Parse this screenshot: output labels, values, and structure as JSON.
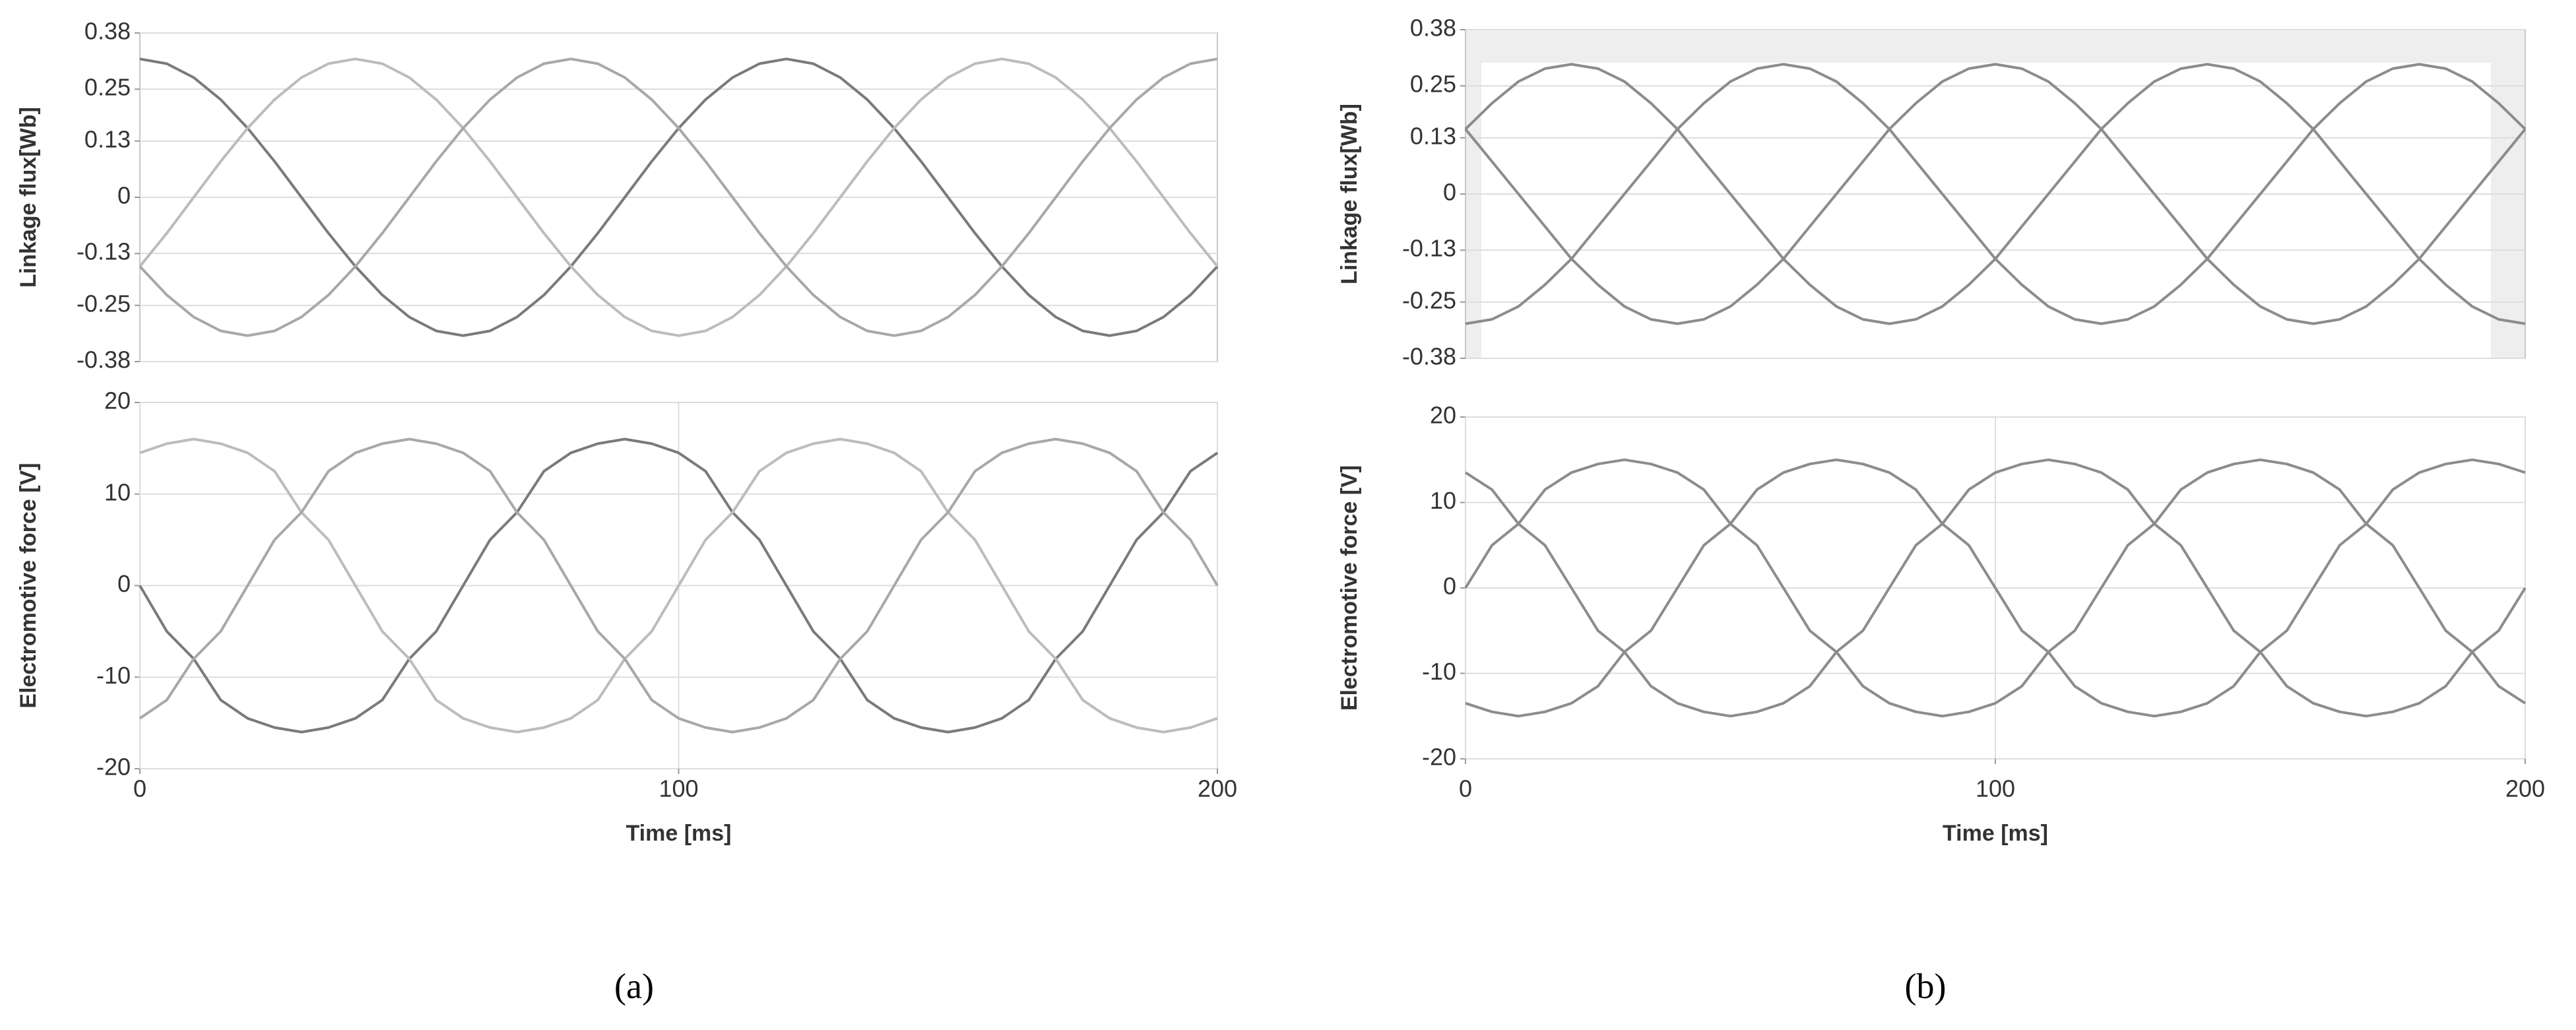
{
  "chart_data": [
    {
      "type": "line",
      "ylabel": "Linkage flux[Wb]",
      "xlim": [
        0,
        200
      ],
      "ylim": [
        -0.38,
        0.38
      ],
      "yticks": [
        0.38,
        0.25,
        0.13,
        0,
        -0.13,
        -0.25,
        -0.38
      ],
      "grid": true,
      "x": [
        0,
        5,
        10,
        15,
        20,
        25,
        30,
        35,
        40,
        45,
        50,
        55,
        60,
        65,
        70,
        75,
        80,
        85,
        90,
        95,
        100,
        105,
        110,
        115,
        120,
        125,
        130,
        135,
        140,
        145,
        150,
        155,
        160,
        165,
        170,
        175,
        180,
        185,
        190,
        195,
        200
      ],
      "series": [
        {
          "color": "#7a7a7a",
          "values": [
            0.32,
            0.309,
            0.277,
            0.226,
            0.16,
            0.083,
            0,
            -0.083,
            -0.16,
            -0.226,
            -0.277,
            -0.309,
            -0.32,
            -0.309,
            -0.277,
            -0.226,
            -0.16,
            -0.083,
            0,
            0.083,
            0.16,
            0.226,
            0.277,
            0.309,
            0.32,
            0.309,
            0.277,
            0.226,
            0.16,
            0.083,
            0,
            -0.083,
            -0.16,
            -0.226,
            -0.277,
            -0.309,
            -0.32,
            -0.309,
            -0.277,
            -0.226,
            -0.16
          ]
        },
        {
          "color": "#bcbcbc",
          "values": [
            -0.16,
            -0.083,
            0,
            0.083,
            0.16,
            0.226,
            0.277,
            0.309,
            0.32,
            0.309,
            0.277,
            0.226,
            0.16,
            0.083,
            0,
            -0.083,
            -0.16,
            -0.226,
            -0.277,
            -0.309,
            -0.32,
            -0.309,
            -0.277,
            -0.226,
            -0.16,
            -0.083,
            0,
            0.083,
            0.16,
            0.226,
            0.277,
            0.309,
            0.32,
            0.309,
            0.277,
            0.226,
            0.16,
            0.083,
            0,
            -0.083,
            -0.16
          ]
        },
        {
          "color": "#a8a8a8",
          "values": [
            -0.16,
            -0.226,
            -0.277,
            -0.309,
            -0.32,
            -0.309,
            -0.277,
            -0.226,
            -0.16,
            -0.083,
            0,
            0.083,
            0.16,
            0.226,
            0.277,
            0.309,
            0.32,
            0.309,
            0.277,
            0.226,
            0.16,
            0.083,
            0,
            -0.083,
            -0.16,
            -0.226,
            -0.277,
            -0.309,
            -0.32,
            -0.309,
            -0.277,
            -0.226,
            -0.16,
            -0.083,
            0,
            0.083,
            0.16,
            0.226,
            0.277,
            0.309,
            0.32
          ]
        }
      ]
    },
    {
      "type": "line",
      "ylabel": "Electromotive force [V]",
      "xlabel": "Time [ms]",
      "xlim": [
        0,
        200
      ],
      "xticks": [
        0,
        100,
        200
      ],
      "ylim": [
        -20,
        20
      ],
      "yticks": [
        20,
        10,
        0,
        -10,
        -20
      ],
      "grid": true,
      "x": [
        0,
        5,
        10,
        15,
        20,
        25,
        30,
        35,
        40,
        45,
        50,
        55,
        60,
        65,
        70,
        75,
        80,
        85,
        90,
        95,
        100,
        105,
        110,
        115,
        120,
        125,
        130,
        135,
        140,
        145,
        150,
        155,
        160,
        165,
        170,
        175,
        180,
        185,
        190,
        195,
        200
      ],
      "series": [
        {
          "color": "#7a7a7a",
          "values": [
            0,
            -5,
            -8,
            -12.5,
            -14.5,
            -15.5,
            -16,
            -15.5,
            -14.5,
            -12.5,
            -8,
            -5,
            0,
            5,
            8,
            12.5,
            14.5,
            15.5,
            16,
            15.5,
            14.5,
            12.5,
            8,
            5,
            0,
            -5,
            -8,
            -12.5,
            -14.5,
            -15.5,
            -16,
            -15.5,
            -14.5,
            -12.5,
            -8,
            -5,
            0,
            5,
            8,
            12.5,
            14.5
          ]
        },
        {
          "color": "#bcbcbc",
          "values": [
            14.5,
            15.5,
            16,
            15.5,
            14.5,
            12.5,
            8,
            5,
            0,
            -5,
            -8,
            -12.5,
            -14.5,
            -15.5,
            -16,
            -15.5,
            -14.5,
            -12.5,
            -8,
            -5,
            0,
            5,
            8,
            12.5,
            14.5,
            15.5,
            16,
            15.5,
            14.5,
            12.5,
            8,
            5,
            0,
            -5,
            -8,
            -12.5,
            -14.5,
            -15.5,
            -16,
            -15.5,
            -14.5
          ]
        },
        {
          "color": "#a8a8a8",
          "values": [
            -14.5,
            -12.5,
            -8,
            -5,
            0,
            5,
            8,
            12.5,
            14.5,
            15.5,
            16,
            15.5,
            14.5,
            12.5,
            8,
            5,
            0,
            -5,
            -8,
            -12.5,
            -14.5,
            -15.5,
            -16,
            -15.5,
            -14.5,
            -12.5,
            -8,
            -5,
            0,
            5,
            8,
            12.5,
            14.5,
            15.5,
            16,
            15.5,
            14.5,
            12.5,
            8,
            5,
            0
          ]
        }
      ]
    },
    {
      "type": "line",
      "ylabel": "Linkage flux[Wb]",
      "xlim": [
        0,
        200
      ],
      "ylim": [
        -0.38,
        0.38
      ],
      "yticks": [
        0.38,
        0.25,
        0.13,
        0,
        -0.13,
        -0.25,
        -0.38
      ],
      "grid": true,
      "x": [
        0,
        5,
        10,
        15,
        20,
        25,
        30,
        35,
        40,
        45,
        50,
        55,
        60,
        65,
        70,
        75,
        80,
        85,
        90,
        95,
        100,
        105,
        110,
        115,
        120,
        125,
        130,
        135,
        140,
        145,
        150,
        155,
        160,
        165,
        170,
        175,
        180,
        185,
        190,
        195,
        200
      ],
      "series": [
        {
          "color": "#8c8c8c",
          "values": [
            -0.3,
            -0.29,
            -0.26,
            -0.21,
            -0.15,
            -0.075,
            0,
            0.075,
            0.15,
            0.21,
            0.26,
            0.29,
            0.3,
            0.29,
            0.26,
            0.21,
            0.15,
            0.075,
            0,
            -0.075,
            -0.15,
            -0.21,
            -0.26,
            -0.29,
            -0.3,
            -0.29,
            -0.26,
            -0.21,
            -0.15,
            -0.075,
            0,
            0.075,
            0.15,
            0.21,
            0.26,
            0.29,
            0.3,
            0.29,
            0.26,
            0.21,
            0.15
          ]
        },
        {
          "color": "#8c8c8c",
          "values": [
            0.15,
            0.075,
            0,
            -0.075,
            -0.15,
            -0.21,
            -0.26,
            -0.29,
            -0.3,
            -0.29,
            -0.26,
            -0.21,
            -0.15,
            -0.075,
            0,
            0.075,
            0.15,
            0.21,
            0.26,
            0.29,
            0.3,
            0.29,
            0.26,
            0.21,
            0.15,
            0.075,
            0,
            -0.075,
            -0.15,
            -0.21,
            -0.26,
            -0.29,
            -0.3,
            -0.29,
            -0.26,
            -0.21,
            -0.15,
            -0.075,
            0,
            0.075,
            0.15
          ]
        },
        {
          "color": "#8c8c8c",
          "values": [
            0.15,
            0.21,
            0.26,
            0.29,
            0.3,
            0.29,
            0.26,
            0.21,
            0.15,
            0.075,
            0,
            -0.075,
            -0.15,
            -0.21,
            -0.26,
            -0.29,
            -0.3,
            -0.29,
            -0.26,
            -0.21,
            -0.15,
            -0.075,
            0,
            0.075,
            0.15,
            0.21,
            0.26,
            0.29,
            0.3,
            0.29,
            0.26,
            0.21,
            0.15,
            0.075,
            0,
            -0.075,
            -0.15,
            -0.21,
            -0.26,
            -0.29,
            -0.3
          ]
        }
      ]
    },
    {
      "type": "line",
      "ylabel": "Electromotive force [V]",
      "xlabel": "Time [ms]",
      "xlim": [
        0,
        200
      ],
      "xticks": [
        0,
        100,
        200
      ],
      "ylim": [
        -20,
        20
      ],
      "yticks": [
        20,
        10,
        0,
        -10,
        -20
      ],
      "grid": true,
      "x": [
        0,
        5,
        10,
        15,
        20,
        25,
        30,
        35,
        40,
        45,
        50,
        55,
        60,
        65,
        70,
        75,
        80,
        85,
        90,
        95,
        100,
        105,
        110,
        115,
        120,
        125,
        130,
        135,
        140,
        145,
        150,
        155,
        160,
        165,
        170,
        175,
        180,
        185,
        190,
        195,
        200
      ],
      "series": [
        {
          "color": "#8c8c8c",
          "values": [
            0,
            5,
            7.5,
            11.5,
            13.5,
            14.5,
            15,
            14.5,
            13.5,
            11.5,
            7.5,
            5,
            0,
            -5,
            -7.5,
            -11.5,
            -13.5,
            -14.5,
            -15,
            -14.5,
            -13.5,
            -11.5,
            -7.5,
            -5,
            0,
            5,
            7.5,
            11.5,
            13.5,
            14.5,
            15,
            14.5,
            13.5,
            11.5,
            7.5,
            5,
            0,
            -5,
            -7.5,
            -11.5,
            -13.5
          ]
        },
        {
          "color": "#8c8c8c",
          "values": [
            -13.5,
            -14.5,
            -15,
            -14.5,
            -13.5,
            -11.5,
            -7.5,
            -5,
            0,
            5,
            7.5,
            11.5,
            13.5,
            14.5,
            15,
            14.5,
            13.5,
            11.5,
            7.5,
            5,
            0,
            -5,
            -7.5,
            -11.5,
            -13.5,
            -14.5,
            -15,
            -14.5,
            -13.5,
            -11.5,
            -7.5,
            -5,
            0,
            5,
            7.5,
            11.5,
            13.5,
            14.5,
            15,
            14.5,
            13.5
          ]
        },
        {
          "color": "#8c8c8c",
          "values": [
            13.5,
            11.5,
            7.5,
            5,
            0,
            -5,
            -7.5,
            -11.5,
            -13.5,
            -14.5,
            -15,
            -14.5,
            -13.5,
            -11.5,
            -7.5,
            -5,
            0,
            5,
            7.5,
            11.5,
            13.5,
            14.5,
            15,
            14.5,
            13.5,
            11.5,
            7.5,
            5,
            0,
            -5,
            -7.5,
            -11.5,
            -13.5,
            -14.5,
            -15,
            -14.5,
            -13.5,
            -11.5,
            -7.5,
            -5,
            0
          ]
        }
      ]
    }
  ],
  "captions": [
    "(a)",
    "(b)"
  ]
}
